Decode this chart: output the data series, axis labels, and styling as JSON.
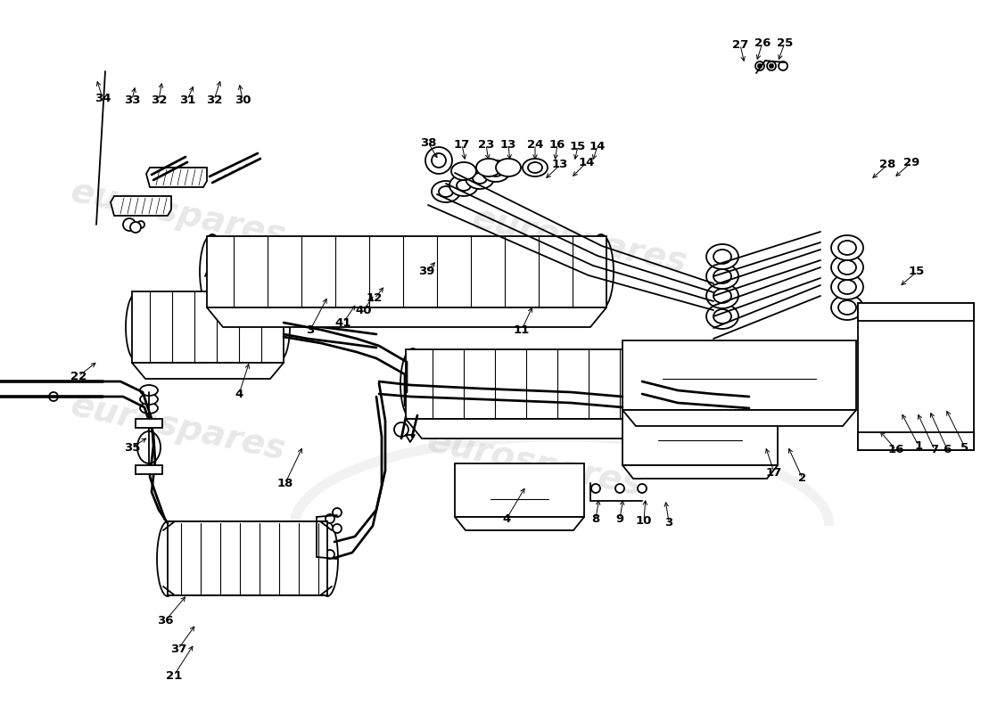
{
  "bg": "#ffffff",
  "lc": "#000000",
  "lw": 1.3,
  "watermark": "eurospares",
  "wm_color": "#cccccc",
  "wm_alpha": 0.45,
  "callouts": [
    [
      "21",
      195,
      42,
      218,
      78
    ],
    [
      "37",
      200,
      72,
      220,
      100
    ],
    [
      "36",
      185,
      103,
      210,
      133
    ],
    [
      "18",
      320,
      258,
      340,
      300
    ],
    [
      "35",
      148,
      298,
      167,
      310
    ],
    [
      "22",
      88,
      378,
      110,
      395
    ],
    [
      "4",
      268,
      358,
      280,
      395
    ],
    [
      "4",
      568,
      218,
      590,
      255
    ],
    [
      "3",
      348,
      430,
      368,
      468
    ],
    [
      "41",
      385,
      438,
      400,
      460
    ],
    [
      "40",
      408,
      452,
      420,
      470
    ],
    [
      "12",
      420,
      465,
      432,
      480
    ],
    [
      "11",
      585,
      430,
      598,
      458
    ],
    [
      "39",
      478,
      495,
      490,
      508
    ],
    [
      "8",
      668,
      218,
      672,
      242
    ],
    [
      "9",
      695,
      218,
      699,
      242
    ],
    [
      "10",
      722,
      216,
      724,
      242
    ],
    [
      "3",
      750,
      214,
      746,
      240
    ],
    [
      "17",
      868,
      270,
      858,
      300
    ],
    [
      "2",
      900,
      263,
      883,
      300
    ],
    [
      "16",
      1005,
      295,
      985,
      318
    ],
    [
      "1",
      1030,
      300,
      1010,
      338
    ],
    [
      "7",
      1048,
      295,
      1028,
      338
    ],
    [
      "6",
      1062,
      296,
      1042,
      340
    ],
    [
      "5",
      1082,
      298,
      1060,
      342
    ],
    [
      "15",
      1028,
      495,
      1008,
      478
    ],
    [
      "13",
      628,
      615,
      610,
      598
    ],
    [
      "14",
      658,
      618,
      640,
      600
    ],
    [
      "28",
      995,
      615,
      976,
      598
    ],
    [
      "29",
      1022,
      618,
      1002,
      600
    ],
    [
      "25",
      880,
      752,
      872,
      730
    ],
    [
      "26",
      855,
      752,
      848,
      730
    ],
    [
      "27",
      830,
      750,
      835,
      728
    ],
    [
      "38",
      480,
      640,
      492,
      620
    ],
    [
      "17",
      518,
      638,
      522,
      618
    ],
    [
      "23",
      545,
      638,
      548,
      618
    ],
    [
      "13",
      570,
      638,
      572,
      618
    ],
    [
      "24",
      600,
      638,
      600,
      618
    ],
    [
      "16",
      625,
      638,
      622,
      618
    ],
    [
      "15",
      648,
      636,
      644,
      618
    ],
    [
      "14",
      670,
      636,
      664,
      618
    ],
    [
      "34",
      115,
      690,
      108,
      712
    ],
    [
      "33",
      148,
      688,
      152,
      705
    ],
    [
      "32",
      178,
      688,
      182,
      710
    ],
    [
      "31",
      210,
      688,
      218,
      706
    ],
    [
      "32",
      240,
      688,
      248,
      712
    ],
    [
      "30",
      272,
      688,
      268,
      708
    ]
  ]
}
